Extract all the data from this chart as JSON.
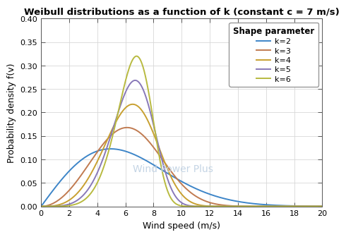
{
  "title": "Weibull distributions as a function of k (constant c = 7 m/s)",
  "xlabel": "Wind speed (m/s)",
  "ylabel": "Probability density f(v)",
  "xlim": [
    0,
    20
  ],
  "ylim": [
    0,
    0.4
  ],
  "xticks": [
    0,
    2,
    4,
    6,
    8,
    10,
    12,
    14,
    16,
    18,
    20
  ],
  "yticks": [
    0,
    0.05,
    0.1,
    0.15,
    0.2,
    0.25,
    0.3,
    0.35,
    0.4
  ],
  "c": 7,
  "k_values": [
    2,
    3,
    4,
    5,
    6
  ],
  "colors": [
    "#3d85c8",
    "#c07a50",
    "#c8a030",
    "#8878b8",
    "#b8ba40"
  ],
  "legend_title": "Shape parameter",
  "legend_labels": [
    "k=2",
    "k=3",
    "k=4",
    "k=5",
    "k=6"
  ],
  "watermark": "Wind Power Plus",
  "watermark_color": "#c5d5e5",
  "background_color": "#ffffff",
  "grid_color": "#d8d8d8",
  "title_fontsize": 9.5,
  "label_fontsize": 9,
  "tick_fontsize": 8,
  "legend_fontsize": 8,
  "legend_title_fontsize": 8.5,
  "line_width": 1.4
}
